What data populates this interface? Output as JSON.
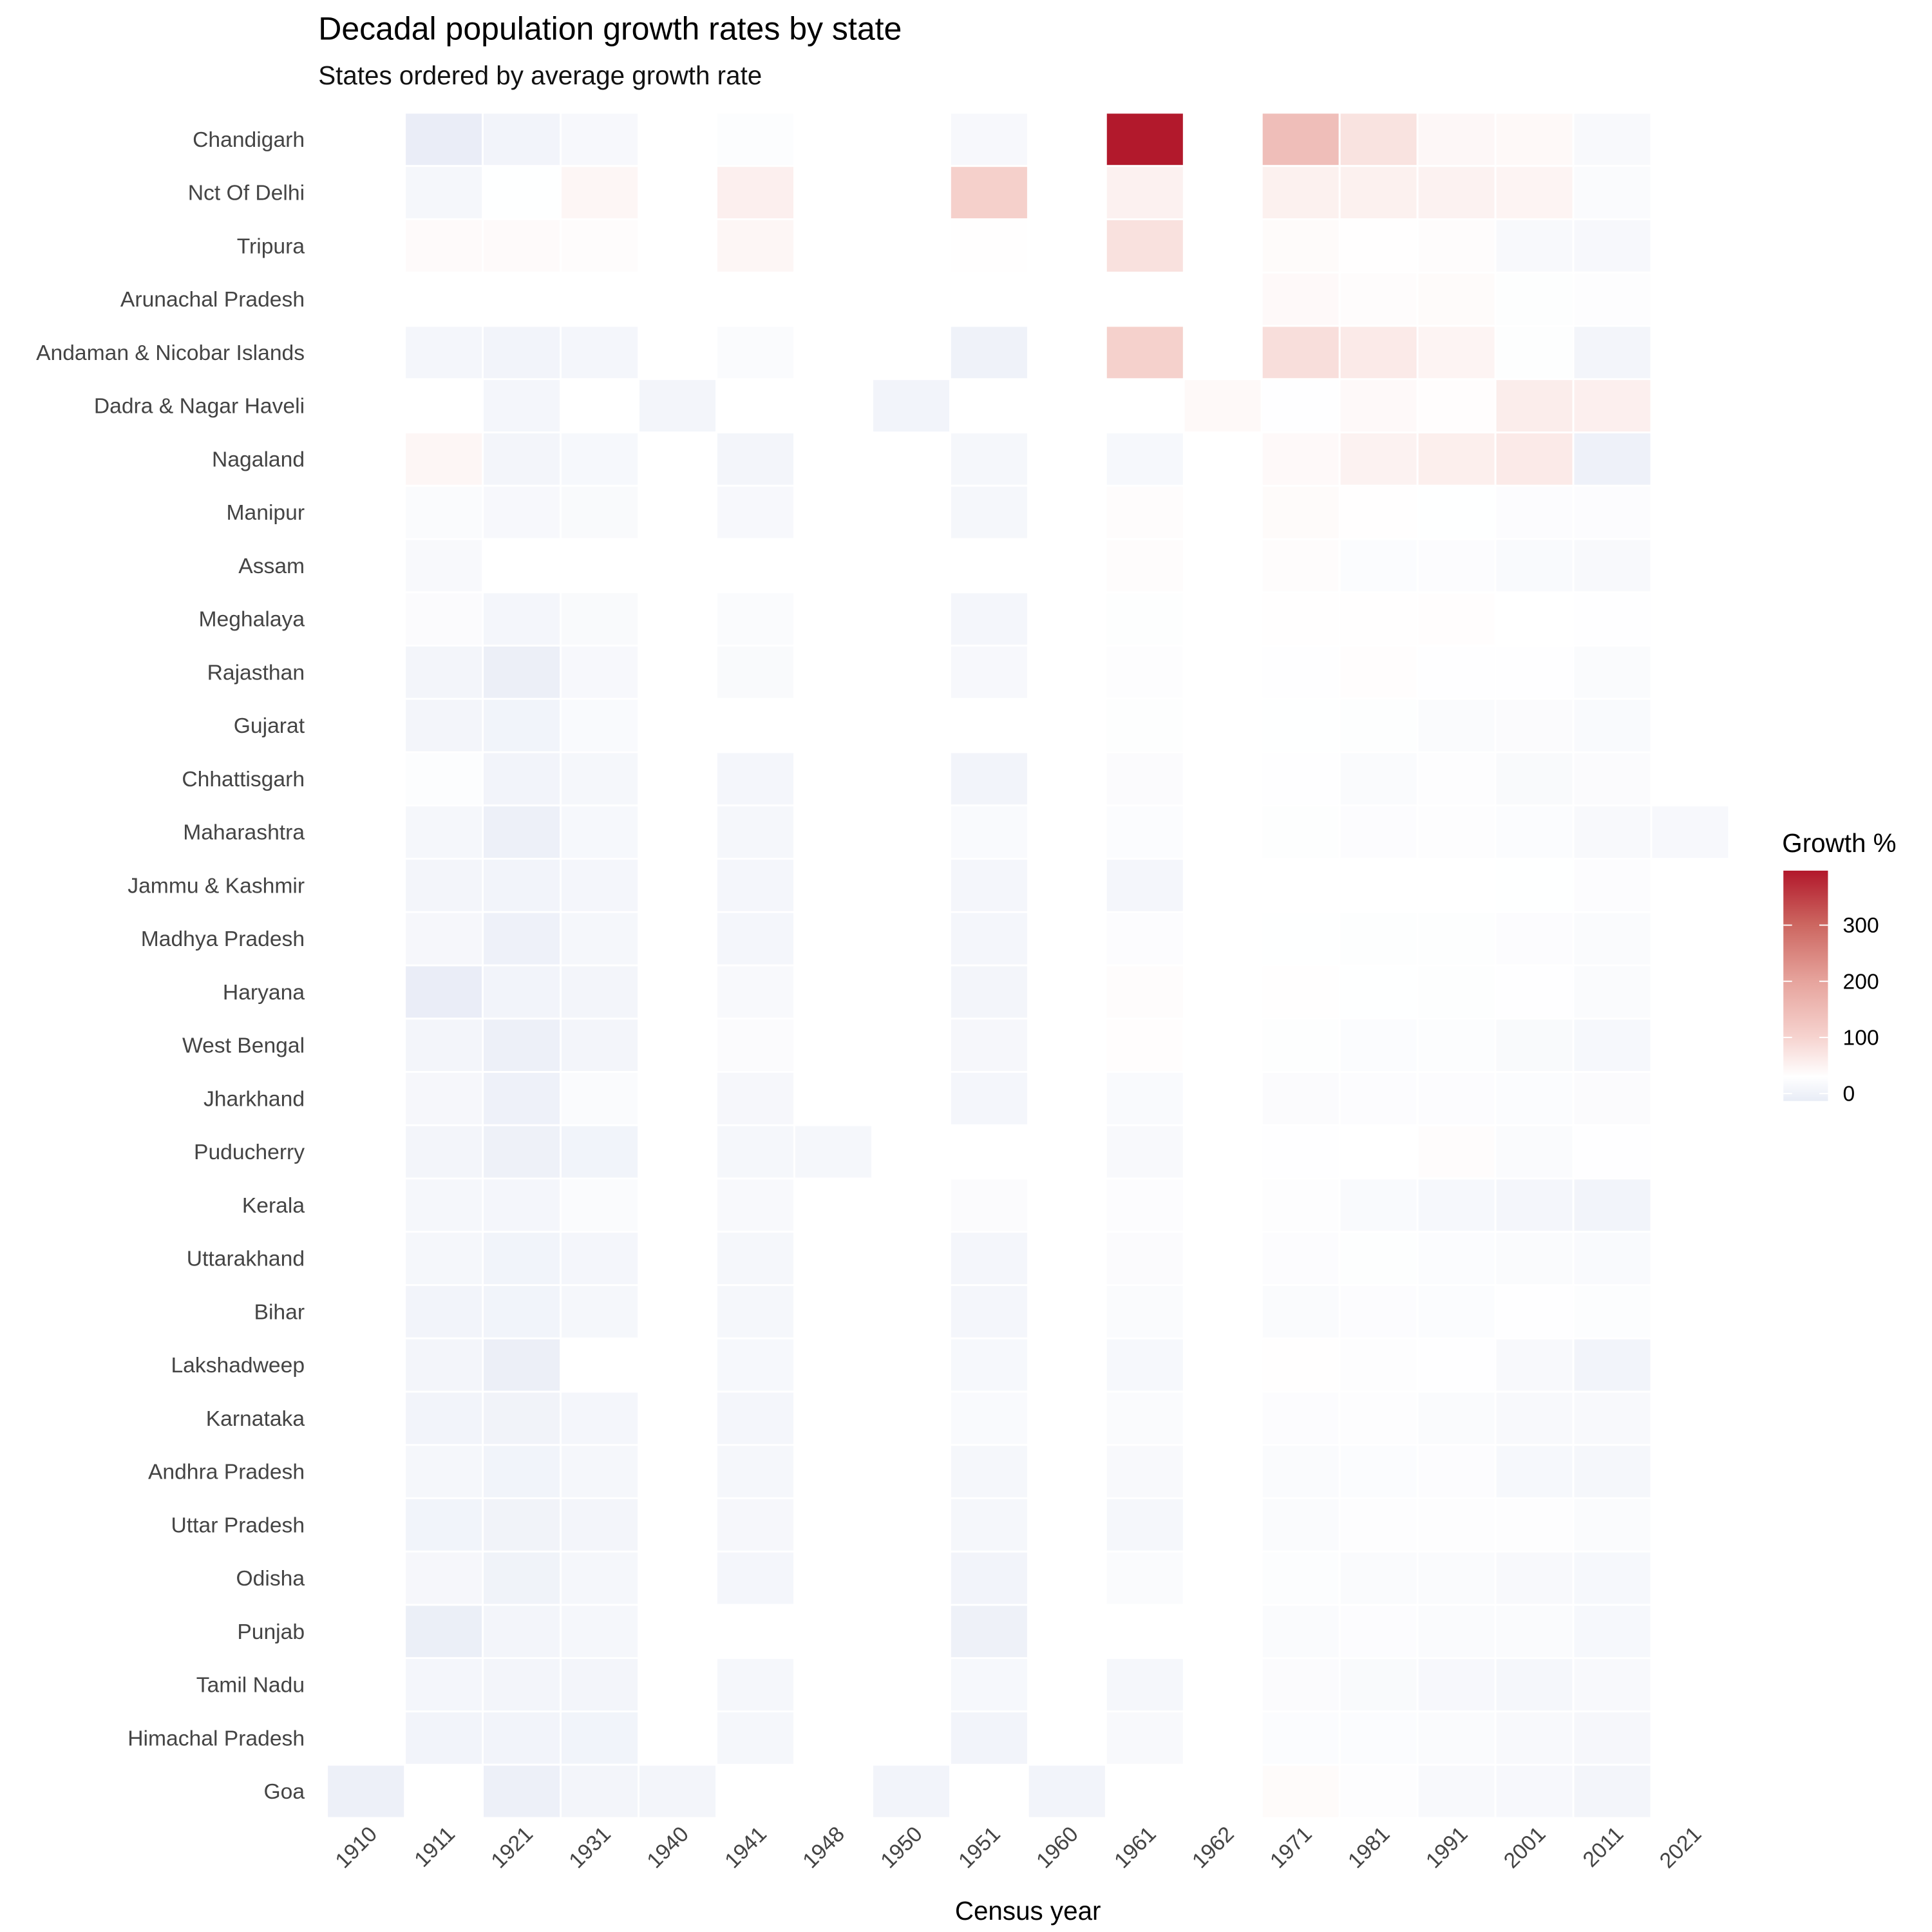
{
  "chart_data": {
    "type": "heatmap",
    "title": "Decadal population growth rates by state",
    "subtitle": "States ordered by average growth rate",
    "xlabel": "Census year",
    "ylabel": "",
    "legend": {
      "title": "Growth %",
      "ticks": [
        0,
        100,
        200,
        300
      ],
      "placement": "right",
      "range": [
        -13,
        395
      ]
    },
    "colors": {
      "low": "#e8ecf6",
      "mid": "#ffffff",
      "high": "#b2182b"
    },
    "x": [
      "1910",
      "1911",
      "1921",
      "1931",
      "1940",
      "1941",
      "1948",
      "1950",
      "1951",
      "1960",
      "1961",
      "1962",
      "1971",
      "1981",
      "1991",
      "2001",
      "2011",
      "2021"
    ],
    "y": [
      "Chandigarh",
      "Nct Of Delhi",
      "Tripura",
      "Arunachal Pradesh",
      "Andaman & Nicobar Islands",
      "Dadra & Nagar Haveli",
      "Nagaland",
      "Manipur",
      "Assam",
      "Meghalaya",
      "Rajasthan",
      "Gujarat",
      "Chhattisgarh",
      "Maharashtra",
      "Jammu & Kashmir",
      "Madhya Pradesh",
      "Haryana",
      "West Bengal",
      "Jharkhand",
      "Puducherry",
      "Kerala",
      "Uttarakhand",
      "Bihar",
      "Lakshadweep",
      "Karnataka",
      "Andhra Pradesh",
      "Uttar Pradesh",
      "Odisha",
      "Punjab",
      "Tamil Nadu",
      "Himachal Pradesh",
      "Goa"
    ],
    "values": [
      [
        null,
        -10,
        5,
        15,
        null,
        25,
        null,
        null,
        15,
        null,
        394,
        null,
        144,
        75,
        42,
        40,
        17,
        null
      ],
      [
        null,
        12,
        29,
        45,
        null,
        55,
        null,
        null,
        107,
        null,
        52,
        null,
        53,
        53,
        51,
        47,
        21,
        null
      ],
      [
        null,
        38,
        38,
        35,
        null,
        45,
        null,
        null,
        32,
        null,
        78,
        null,
        37,
        32,
        34,
        16,
        15,
        null
      ],
      [
        null,
        null,
        null,
        null,
        null,
        null,
        null,
        null,
        null,
        null,
        null,
        null,
        39,
        35,
        37,
        27,
        26,
        null
      ],
      [
        null,
        10,
        5,
        10,
        null,
        20,
        null,
        null,
        0,
        null,
        105,
        null,
        82,
        64,
        48,
        27,
        7,
        null
      ],
      [
        null,
        null,
        10,
        30,
        8,
        null,
        null,
        5,
        null,
        null,
        null,
        40,
        28,
        39,
        33,
        59,
        55,
        null
      ],
      [
        null,
        45,
        7,
        14,
        null,
        8,
        null,
        null,
        12,
        null,
        14,
        null,
        39,
        50,
        56,
        64,
        -1,
        null
      ],
      [
        null,
        21,
        15,
        18,
        null,
        15,
        null,
        null,
        12,
        null,
        35,
        null,
        37,
        32,
        29,
        24,
        24,
        null
      ],
      [
        null,
        17,
        null,
        null,
        null,
        null,
        null,
        null,
        null,
        null,
        35,
        null,
        35,
        23,
        24,
        19,
        17,
        null
      ],
      [
        null,
        22,
        10,
        18,
        null,
        20,
        null,
        null,
        10,
        null,
        27,
        null,
        32,
        32,
        33,
        30,
        28,
        null
      ],
      [
        null,
        8,
        -6,
        15,
        null,
        18,
        null,
        null,
        15,
        null,
        26,
        null,
        28,
        33,
        28,
        28,
        21,
        null
      ],
      [
        null,
        8,
        4,
        19,
        null,
        null,
        null,
        null,
        null,
        null,
        27,
        null,
        29,
        27,
        21,
        22,
        19,
        null
      ],
      [
        null,
        25,
        5,
        12,
        null,
        9,
        null,
        null,
        6,
        null,
        22,
        null,
        28,
        20,
        26,
        18,
        22,
        null
      ],
      [
        null,
        11,
        -3,
        14,
        null,
        11,
        null,
        null,
        19,
        null,
        23,
        null,
        27,
        24,
        26,
        23,
        16,
        15
      ],
      [
        null,
        7,
        5,
        10,
        null,
        10,
        null,
        null,
        10,
        null,
        10,
        null,
        30,
        30,
        30,
        29,
        24,
        null
      ],
      [
        null,
        13,
        -1,
        12,
        null,
        10,
        null,
        null,
        9,
        null,
        24,
        null,
        29,
        27,
        27,
        24,
        20,
        null
      ],
      [
        null,
        -10,
        6,
        7,
        null,
        16,
        null,
        null,
        8,
        null,
        34,
        null,
        32,
        29,
        27,
        28,
        20,
        null
      ],
      [
        null,
        8,
        -3,
        8,
        null,
        22,
        null,
        null,
        13,
        null,
        33,
        null,
        27,
        23,
        25,
        18,
        14,
        null
      ],
      [
        null,
        13,
        -1,
        20,
        null,
        13,
        null,
        null,
        9,
        null,
        19,
        null,
        22,
        24,
        24,
        23,
        22,
        null
      ],
      [
        null,
        7,
        -2,
        4,
        null,
        12,
        12,
        null,
        null,
        null,
        17,
        null,
        28,
        30,
        34,
        21,
        28,
        null
      ],
      [
        null,
        12,
        9,
        21,
        null,
        16,
        null,
        null,
        22,
        null,
        24,
        null,
        26,
        19,
        14,
        9,
        5,
        null
      ],
      [
        null,
        11,
        4,
        9,
        null,
        12,
        null,
        null,
        10,
        null,
        22,
        null,
        24,
        27,
        23,
        20,
        19,
        null
      ],
      [
        null,
        5,
        4,
        12,
        null,
        11,
        null,
        null,
        10,
        null,
        20,
        null,
        21,
        24,
        23,
        28,
        25,
        null
      ],
      [
        null,
        7,
        -6,
        null,
        null,
        14,
        null,
        null,
        14,
        null,
        14,
        null,
        32,
        26,
        28,
        17,
        6,
        null
      ],
      [
        null,
        5,
        3,
        10,
        null,
        9,
        null,
        null,
        19,
        null,
        21,
        null,
        24,
        26,
        21,
        17,
        16,
        null
      ],
      [
        null,
        12,
        4,
        12,
        null,
        12,
        null,
        null,
        11,
        null,
        16,
        null,
        20,
        23,
        24,
        14,
        11,
        null
      ],
      [
        null,
        4,
        3,
        7,
        null,
        13,
        null,
        null,
        12,
        null,
        12,
        null,
        20,
        26,
        26,
        26,
        20,
        null
      ],
      [
        null,
        13,
        2,
        11,
        null,
        10,
        null,
        null,
        6,
        null,
        20,
        null,
        25,
        20,
        20,
        16,
        14,
        null
      ],
      [
        null,
        -7,
        7,
        12,
        null,
        null,
        null,
        null,
        -2,
        null,
        null,
        null,
        21,
        24,
        21,
        20,
        14,
        null
      ],
      [
        null,
        9,
        7,
        8,
        null,
        11,
        null,
        null,
        14,
        null,
        12,
        null,
        22,
        18,
        15,
        12,
        16,
        null
      ],
      [
        null,
        5,
        6,
        4,
        null,
        11,
        null,
        null,
        5,
        null,
        17,
        null,
        23,
        23,
        21,
        17,
        13,
        null
      ],
      [
        -4,
        null,
        -3,
        8,
        8,
        null,
        null,
        5,
        null,
        6,
        null,
        null,
        37,
        26,
        16,
        15,
        8,
        null
      ]
    ]
  }
}
